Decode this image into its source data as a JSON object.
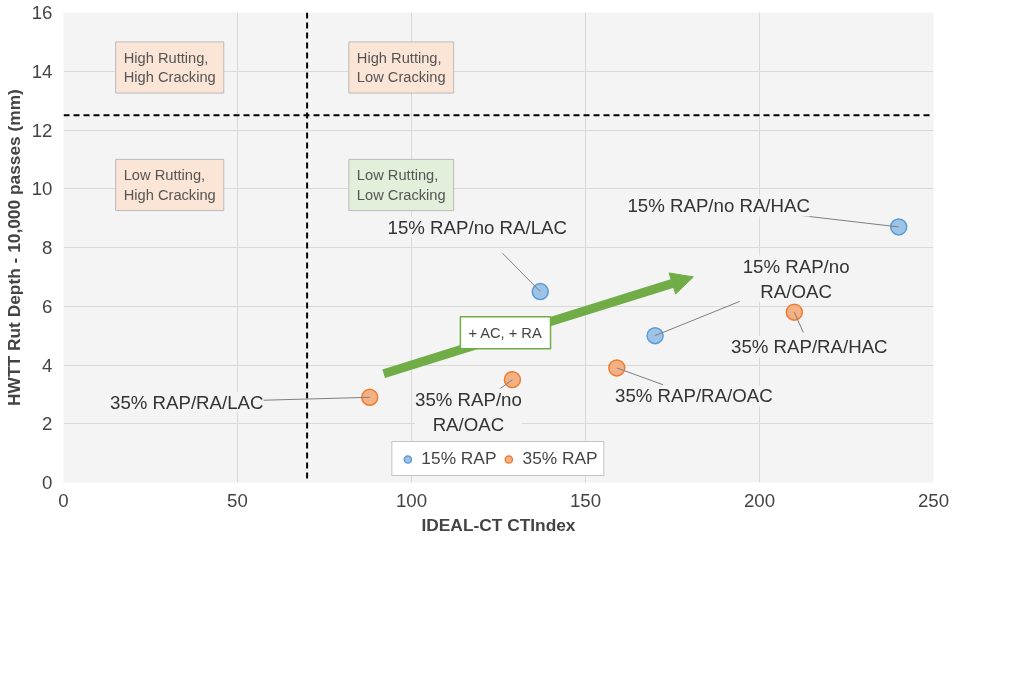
{
  "chart_data": {
    "type": "scatter",
    "xlabel": "IDEAL-CT CTIndex",
    "ylabel": "HWTT Rut Depth - 10,000 passes (mm)",
    "series": [
      {
        "name": "15% RAP",
        "color": "#9dc3e6",
        "x": [
          137,
          170,
          240
        ],
        "values": [
          6.5,
          5.0,
          8.7
        ]
      },
      {
        "name": "35% RAP",
        "color": "#f4b183",
        "x": [
          88,
          129,
          159,
          210
        ],
        "values": [
          2.9,
          3.5,
          3.9,
          5.8
        ]
      }
    ],
    "xlim": [
      0,
      250
    ],
    "xticks": [
      0,
      50,
      100,
      150,
      200,
      250
    ],
    "ylim": [
      0,
      16
    ],
    "yticks": [
      0,
      2,
      4,
      6,
      8,
      10,
      12,
      14,
      16
    ],
    "ref_lines": [
      {
        "axis": "x",
        "value": 70,
        "line_style": "dashed",
        "color": "#000000"
      },
      {
        "axis": "y",
        "value": 12.5,
        "line_style": "dashed",
        "color": "#000000"
      }
    ],
    "annotations": [
      {
        "text": "15% RAP/no RA/LAC",
        "x": 137,
        "y": 6.5
      },
      {
        "text": "15% RAP/no\nRA/OAC",
        "x": 170,
        "y": 5.0
      },
      {
        "text": "15% RAP/no RA/HAC",
        "x": 240,
        "y": 8.7
      },
      {
        "text": "35% RAP/RA/LAC",
        "x": 88,
        "y": 2.9
      },
      {
        "text": "35% RAP/no\nRA/OAC",
        "x": 129,
        "y": 3.5
      },
      {
        "text": "35% RAP/RA/OAC",
        "x": 159,
        "y": 3.9
      },
      {
        "text": "35% RAP/RA/HAC",
        "x": 210,
        "y": 5.8
      },
      "High Rutting,\nHigh Cracking",
      "High Rutting,\nLow Cracking",
      "Low Rutting,\nHigh Cracking",
      "Low Rutting,\nLow Cracking",
      "+ AC, + RA"
    ],
    "grid": true,
    "legend": "bottom",
    "marker": "circle"
  }
}
